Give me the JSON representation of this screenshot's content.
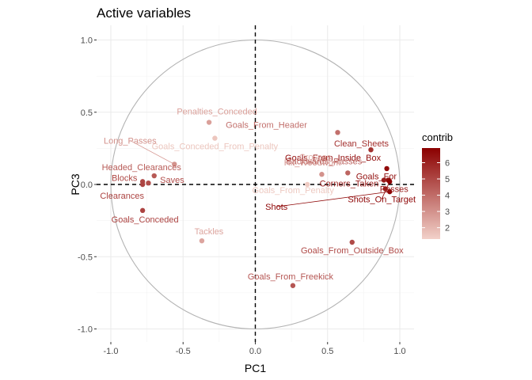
{
  "chart_data": {
    "type": "scatter",
    "title": "Active variables",
    "xlabel": "PC1",
    "ylabel": "PC3",
    "xlim": [
      -1.0,
      1.0
    ],
    "ylim": [
      -1.0,
      1.0
    ],
    "x_ticks": [
      -1.0,
      -0.5,
      0.0,
      0.5,
      1.0
    ],
    "x_tick_labels": [
      "-1.0",
      "-0.5",
      "0.0",
      "0.5",
      "1.0"
    ],
    "y_ticks": [
      -1.0,
      -0.5,
      0.0,
      0.5,
      1.0
    ],
    "y_tick_labels": [
      "-1.0",
      "-0.5",
      "0.0",
      "0.5",
      "1.0"
    ],
    "grid": true,
    "unit_circle": true,
    "reference_lines": [
      "x = 0",
      "y = 0"
    ],
    "legend": {
      "title": "contrib",
      "position": "right",
      "ticks": [
        2,
        3,
        4,
        5,
        6
      ],
      "tick_labels": [
        "2",
        "3",
        "4",
        "5",
        "6"
      ],
      "range": [
        1.3,
        6.9
      ],
      "color_low": "#f2d1c9",
      "color_high": "#8b0000"
    },
    "points": [
      {
        "name": "Goals_From_Header",
        "x": 0.57,
        "y": 0.36,
        "contrib": 3.9
      },
      {
        "name": "Clean_Sheets",
        "x": 0.8,
        "y": 0.24,
        "contrib": 5.6
      },
      {
        "name": "Goals_From_Inside_Box",
        "x": 0.91,
        "y": 0.11,
        "contrib": 6.6
      },
      {
        "name": "Crosses",
        "x": 0.48,
        "y": 0.18,
        "contrib": 2.2
      },
      {
        "name": "Backwards_Passes",
        "x": 0.64,
        "y": 0.08,
        "contrib": 4.2
      },
      {
        "name": "Goals_For",
        "x": 0.92,
        "y": 0.03,
        "contrib": 6.5
      },
      {
        "name": "Hit_Woodwork",
        "x": 0.46,
        "y": 0.07,
        "contrib": 3.0
      },
      {
        "name": "Corners_Taken",
        "x": 0.89,
        "y": 0.03,
        "contrib": 6.1
      },
      {
        "name": "Passes",
        "x": 0.9,
        "y": -0.03,
        "contrib": 6.2
      },
      {
        "name": "Shots",
        "x": 0.93,
        "y": -0.05,
        "contrib": 6.8
      },
      {
        "name": "Shots_On_Target",
        "x": 0.93,
        "y": 0.02,
        "contrib": 6.8
      },
      {
        "name": "Goals_From_Penalty",
        "x": 0.36,
        "y": 0.0,
        "contrib": 1.5
      },
      {
        "name": "Penalties_Conceded",
        "x": -0.32,
        "y": 0.43,
        "contrib": 2.6
      },
      {
        "name": "Goals_Conceded_From_Penalty",
        "x": -0.28,
        "y": 0.32,
        "contrib": 1.6
      },
      {
        "name": "Long_Passes",
        "x": -0.56,
        "y": 0.14,
        "contrib": 3.0
      },
      {
        "name": "Headed_Clearances",
        "x": -0.7,
        "y": 0.06,
        "contrib": 4.5
      },
      {
        "name": "Blocks",
        "x": -0.78,
        "y": 0.02,
        "contrib": 5.0
      },
      {
        "name": "Saves",
        "x": -0.74,
        "y": 0.01,
        "contrib": 4.8
      },
      {
        "name": "Clearances",
        "x": -0.78,
        "y": 0.0,
        "contrib": 5.1
      },
      {
        "name": "Goals_Conceded",
        "x": -0.78,
        "y": -0.18,
        "contrib": 5.1
      },
      {
        "name": "Tackles",
        "x": -0.37,
        "y": -0.39,
        "contrib": 2.5
      },
      {
        "name": "Goals_From_Outside_Box",
        "x": 0.67,
        "y": -0.4,
        "contrib": 4.9
      },
      {
        "name": "Goals_From_Freekick",
        "x": 0.26,
        "y": -0.7,
        "contrib": 4.6
      }
    ]
  }
}
